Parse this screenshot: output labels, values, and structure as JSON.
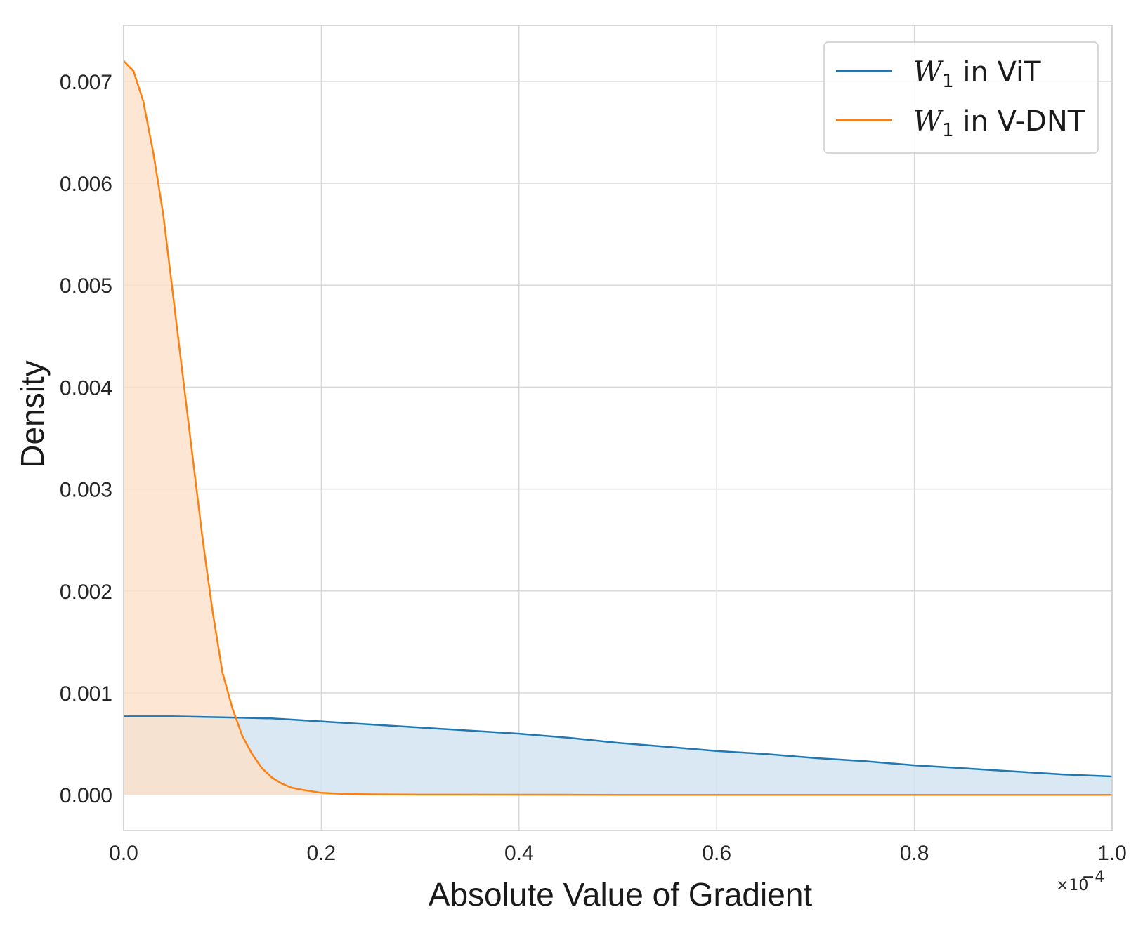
{
  "chart_data": {
    "type": "area",
    "xlabel": "Absolute Value of Gradient",
    "ylabel": "Density",
    "x_multiplier_label": "×10",
    "x_multiplier_exp": "−4",
    "xlim": [
      0.0,
      1.0
    ],
    "ylim": [
      -0.00035,
      0.00755
    ],
    "x_ticks": [
      0.0,
      0.2,
      0.4,
      0.6,
      0.8,
      1.0
    ],
    "x_tick_labels": [
      "0.0",
      "0.2",
      "0.4",
      "0.6",
      "0.8",
      "1.0"
    ],
    "y_ticks": [
      0.0,
      0.001,
      0.002,
      0.003,
      0.004,
      0.005,
      0.006,
      0.007
    ],
    "y_tick_labels": [
      "0.000",
      "0.001",
      "0.002",
      "0.003",
      "0.004",
      "0.005",
      "0.006",
      "0.007"
    ],
    "grid": true,
    "legend_position": "top-right",
    "series": [
      {
        "name_symbol": "W",
        "name_subscript": "1",
        "name_suffix": " in ViT",
        "color": "#1f77b4",
        "fill": "#cfe2f0",
        "x": [
          0.0,
          0.05,
          0.1,
          0.15,
          0.2,
          0.25,
          0.3,
          0.35,
          0.4,
          0.45,
          0.5,
          0.55,
          0.6,
          0.65,
          0.7,
          0.75,
          0.8,
          0.85,
          0.9,
          0.95,
          1.0
        ],
        "values": [
          0.00077,
          0.00077,
          0.00076,
          0.00075,
          0.00072,
          0.00069,
          0.00066,
          0.00063,
          0.0006,
          0.00056,
          0.00051,
          0.00047,
          0.00043,
          0.0004,
          0.00036,
          0.00033,
          0.00029,
          0.00026,
          0.00023,
          0.0002,
          0.00018
        ]
      },
      {
        "name_symbol": "W",
        "name_subscript": "1",
        "name_suffix": " in V-DNT",
        "color": "#ff7f0e",
        "fill": "#fde0c8",
        "x": [
          0.0,
          0.01,
          0.02,
          0.03,
          0.04,
          0.05,
          0.06,
          0.07,
          0.08,
          0.09,
          0.1,
          0.11,
          0.12,
          0.13,
          0.14,
          0.15,
          0.16,
          0.17,
          0.18,
          0.2,
          0.22,
          0.25,
          0.3,
          0.4,
          0.5,
          0.6,
          0.7,
          0.8,
          0.9,
          1.0
        ],
        "values": [
          0.0072,
          0.0071,
          0.0068,
          0.0063,
          0.0057,
          0.0049,
          0.0041,
          0.0033,
          0.0025,
          0.0018,
          0.0012,
          0.00085,
          0.00058,
          0.0004,
          0.00026,
          0.00017,
          0.00011,
          7e-05,
          5e-05,
          2e-05,
          1e-05,
          5e-06,
          2e-06,
          1e-06,
          0.0,
          0.0,
          0.0,
          0.0,
          0.0,
          0.0
        ]
      }
    ]
  }
}
